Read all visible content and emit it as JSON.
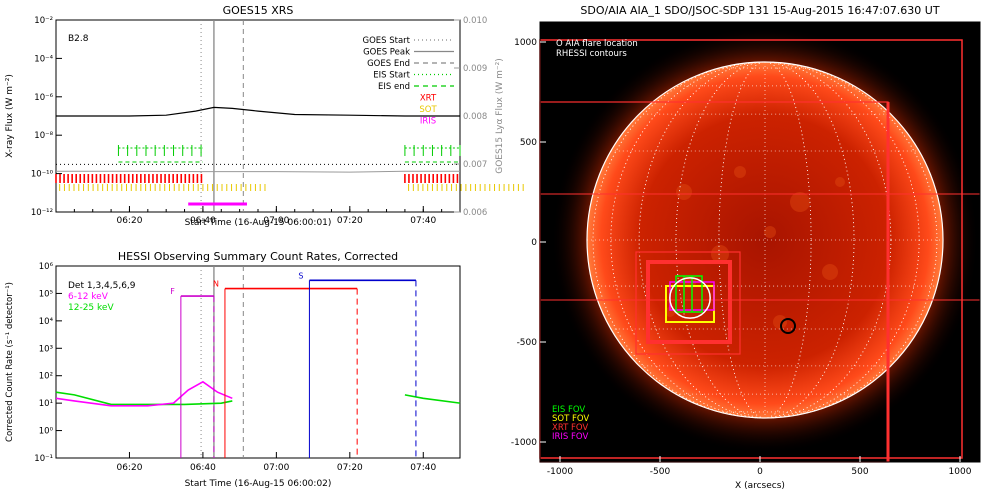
{
  "goes": {
    "title": "GOES15 XRS",
    "class_label": "B2.8",
    "ylabel_left": "X-ray Flux (W m⁻²)",
    "ylabel_right": "GOES15 Lyα Flux (W m⁻²)",
    "xlabel": "Start Time (16-Aug-15 06:00:01)",
    "xticks": [
      "06:20",
      "06:40",
      "07:00",
      "07:20",
      "07:40"
    ],
    "yticks_left": [
      "10⁻²",
      "10⁻⁴",
      "10⁻⁶",
      "10⁻⁸",
      "10⁻¹⁰",
      "10⁻¹²"
    ],
    "yticks_right": [
      "0.010",
      "0.009",
      "0.008",
      "0.007",
      "0.006"
    ],
    "legend": [
      "GOES Start",
      "GOES Peak",
      "GOES End",
      "EIS Start",
      "EIS end",
      "XRT",
      "SOT",
      "IRIS"
    ],
    "colors": {
      "xrt": "#ff0000",
      "sot": "#e8c800",
      "iris": "#ff00ff",
      "eis": "#00cc00",
      "lya": "#9a9a9a"
    }
  },
  "hessi": {
    "title": "HESSI Observing Summary Count Rates, Corrected",
    "legend": [
      "Det 1,3,4,5,6,9",
      "6-12 keV",
      "12-25 keV"
    ],
    "legend_colors": [
      "#000000",
      "#ff00ff",
      "#00dd00"
    ],
    "ylabel": "Corrected Count Rate (s⁻¹ detector⁻¹)",
    "xlabel": "Start Time (16-Aug-15 06:00:02)",
    "xticks": [
      "06:20",
      "06:40",
      "07:00",
      "07:20",
      "07:40"
    ],
    "yticks": [
      "10⁶",
      "10⁵",
      "10⁴",
      "10³",
      "10²",
      "10¹",
      "10⁰",
      "10⁻¹"
    ],
    "flags": [
      {
        "label": "F",
        "color": "#cc00cc"
      },
      {
        "label": "N",
        "color": "#ff0000"
      },
      {
        "label": "S",
        "color": "#0000cc"
      }
    ]
  },
  "aia": {
    "title": "SDO/AIA AIA_1 SDO/JSOC-SDP 131 15-Aug-2015 16:47:07.630 UT",
    "legend_top": [
      "O AIA flare location",
      "RHESSI contours"
    ],
    "legend_fov": [
      {
        "label": "EIS FOV",
        "color": "#00ff00"
      },
      {
        "label": "SOT FOV",
        "color": "#ffff00"
      },
      {
        "label": "XRT FOV",
        "color": "#ff3030"
      },
      {
        "label": "IRIS FOV",
        "color": "#ff00ff"
      }
    ],
    "xticks": [
      "-1000",
      "-500",
      "0",
      "500",
      "1000"
    ],
    "yticks": [
      "1000",
      "500",
      "0",
      "-500",
      "-1000"
    ],
    "xlabel": "X (arcsecs)"
  },
  "chart_data": [
    {
      "type": "line",
      "title": "GOES15 XRS",
      "xlabel": "Start Time (16-Aug-15 06:00:01)",
      "ylabel": "X-ray Flux (W m-2)",
      "y2label": "GOES15 Lyα Flux (W m-2)",
      "ylog": true,
      "xlim_min": [
        0,
        110
      ],
      "ylim": [
        1e-12,
        0.01
      ],
      "y2lim": [
        0.006,
        0.01
      ],
      "series": [
        {
          "name": "X-ray Flux",
          "x": [
            0,
            20,
            30,
            38,
            43,
            48,
            55,
            65,
            80,
            95,
            110
          ],
          "y": [
            1e-07,
            1e-07,
            1.1e-07,
            1.8e-07,
            2.8e-07,
            2.5e-07,
            1.8e-07,
            1.2e-07,
            1.1e-07,
            1e-07,
            1e-07
          ]
        },
        {
          "name": "GOES15 Lyα Flux",
          "x": [
            0,
            20,
            40,
            60,
            80,
            95,
            110
          ],
          "y": [
            0.00685,
            0.00685,
            0.00684,
            0.00684,
            0.00683,
            0.00685,
            0.00685
          ]
        }
      ],
      "goes_start_min": 39.5,
      "goes_peak_min": 43,
      "goes_end_min": 51,
      "eis_windows_min": [
        [
          17,
          40
        ],
        [
          95,
          110
        ]
      ],
      "xrt_windows_min": [
        [
          0,
          40
        ],
        [
          95,
          110
        ]
      ],
      "sot_windows_min": [
        [
          0,
          40
        ],
        [
          95,
          110
        ]
      ],
      "iris_window_min": [
        36,
        52
      ]
    },
    {
      "type": "line",
      "title": "HESSI Observing Summary Count Rates, Corrected",
      "xlabel": "Start Time (16-Aug-15 06:00:02)",
      "ylabel": "Corrected Count Rate (s-1 detector-1)",
      "ylog": true,
      "xlim_min": [
        0,
        110
      ],
      "ylim": [
        0.1,
        1000000.0
      ],
      "series": [
        {
          "name": "6-12 keV",
          "x": [
            0,
            5,
            15,
            25,
            32,
            36,
            40,
            44,
            48
          ],
          "y": [
            15,
            12,
            8,
            8,
            10,
            30,
            60,
            25,
            15
          ]
        },
        {
          "name": "12-25 keV",
          "x": [
            0,
            5,
            15,
            25,
            35,
            45,
            48,
            95,
            100,
            110
          ],
          "y": [
            25,
            20,
            9,
            9,
            9,
            10,
            12,
            20,
            15,
            10
          ]
        }
      ],
      "flags": [
        {
          "label": "F",
          "start_min": 34,
          "end_min": 43
        },
        {
          "label": "N",
          "start_min": 46,
          "end_min": 82
        },
        {
          "label": "S",
          "start_min": 69,
          "end_min": 98
        }
      ]
    }
  ]
}
